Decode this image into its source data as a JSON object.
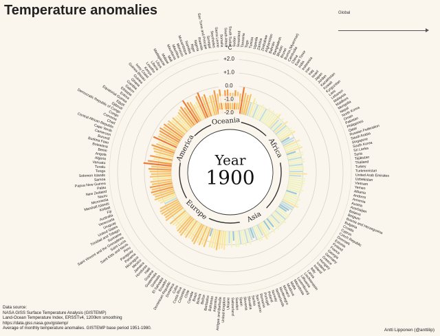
{
  "header": {
    "title": "Temperature anomalies"
  },
  "global_legend": {
    "label": "Global"
  },
  "center": {
    "year_label": "Year",
    "year_value": "1900"
  },
  "regions": [
    "America",
    "Oceania",
    "Africa",
    "Asia",
    "Europe"
  ],
  "footer": {
    "source_lines": [
      "Data source:",
      "NASA GISS Surface Temperature Analysis (GISTEMP)",
      "Land-Ocean Temperature Index, ERSSTv4, 1200km smoothing",
      "https://data.giss.nasa.gov/gistemp/",
      "Average of monthly temperature anomalies. GISTEMP base period 1951-1980."
    ],
    "credit": "Antti Lipponen (@anttilip)"
  },
  "chart_data": {
    "type": "bar",
    "layout": "radial",
    "title": "Temperature anomalies",
    "unit_label": "°C",
    "scale_ticks": [
      "+2.0",
      "+1.0",
      "0.0",
      "-1.0",
      "-2.0"
    ],
    "scale_values": [
      2,
      1,
      0,
      -1,
      -2
    ],
    "ylim": [
      -2,
      2
    ],
    "year": "1900",
    "colors": {
      "cold_deep": "#9cc6d6",
      "cold": "#c4dedc",
      "neutral": "#f1f2c4",
      "warm_light": "#f7e7a0",
      "warm": "#f6c36a",
      "hot": "#f29a45",
      "hotter": "#ec7a35"
    },
    "segments": [
      {
        "region": "Africa",
        "categories": [
          "Algeria",
          "Angola",
          "Benin",
          "Botswana",
          "Burkina Faso",
          "Burundi",
          "Cameroon",
          "Cape Verde",
          "Central African Republic",
          "Chad",
          "Comoros",
          "Congo",
          "Democratic Republic of Congo",
          "Djibouti",
          "Egypt",
          "Equatorial Guinea",
          "Eritrea",
          "Ethiopia",
          "Gabon",
          "Gambia",
          "Ghana",
          "Guinea",
          "Guinea-Bissau",
          "Ivory Coast",
          "Kenya",
          "Lesotho",
          "Liberia",
          "Libya",
          "Madagascar",
          "Malawi",
          "Mali",
          "Mauritania",
          "Mauritius",
          "Morocco",
          "Mozambique",
          "Namibia",
          "Niger",
          "Nigeria",
          "Rwanda",
          "Sao Tome and Principe",
          "Senegal",
          "Seychelles",
          "Sierra Leone",
          "Somalia",
          "South Africa",
          "South Sudan",
          "Sudan",
          "Swaziland",
          "Tanzania",
          "Togo",
          "Tunisia",
          "Uganda",
          "Zambia",
          "Zimbabwe"
        ],
        "values": [
          0.1,
          -0.2,
          -0.6,
          -0.3,
          -0.7,
          -0.5,
          -0.4,
          -0.2,
          -0.5,
          -0.6,
          -0.1,
          -0.4,
          -0.4,
          -0.3,
          -0.2,
          -0.4,
          -0.3,
          -0.5,
          -0.4,
          -0.6,
          -0.5,
          -0.6,
          -0.6,
          -0.5,
          -0.4,
          -0.3,
          -0.5,
          0.0,
          -0.3,
          -0.4,
          -0.7,
          -0.6,
          -0.2,
          0.0,
          -0.4,
          -0.3,
          -0.6,
          -0.5,
          -0.5,
          -0.2,
          -0.5,
          -0.2,
          -0.6,
          -0.3,
          -0.2,
          -0.5,
          -0.5,
          -0.3,
          -0.4,
          -0.5,
          0.0,
          -0.4,
          -0.5,
          -0.4
        ]
      },
      {
        "region": "Asia",
        "categories": [
          "Afghanistan",
          "Bahrain",
          "Bangladesh",
          "Bhutan",
          "Brunei",
          "Burma (Myanmar)",
          "Cambodia",
          "China",
          "East Timor",
          "India",
          "Indonesia",
          "Iran",
          "Iraq",
          "Israel",
          "Japan",
          "Jordan",
          "Kazakhstan",
          "Kuwait",
          "Kyrgyzstan",
          "Laos",
          "Lebanon",
          "Malaysia",
          "Maldives",
          "Mongolia",
          "Nepal",
          "North Korea",
          "Oman",
          "Pakistan",
          "Philippines",
          "Qatar",
          "Russian Federation",
          "Saudi Arabia",
          "Singapore",
          "South Korea",
          "Sri Lanka",
          "Syria",
          "Tajikistan",
          "Thailand",
          "Turkey",
          "Turkmenistan",
          "United Arab Emirates",
          "Uzbekistan",
          "Vietnam",
          "Yemen"
        ],
        "values": [
          -1.0,
          -0.6,
          -0.8,
          -1.0,
          -0.9,
          -0.8,
          -0.9,
          -1.0,
          -0.8,
          -0.9,
          -0.8,
          -0.9,
          -0.8,
          -0.7,
          -1.1,
          -0.8,
          -1.1,
          -0.7,
          -1.0,
          -0.9,
          -0.8,
          -0.8,
          -0.7,
          -1.3,
          -1.0,
          -1.1,
          -0.7,
          -0.9,
          -0.8,
          -0.7,
          -1.3,
          -0.8,
          -0.8,
          -1.0,
          -0.8,
          -0.8,
          -1.0,
          -0.9,
          -0.9,
          -1.0,
          -0.7,
          -1.1,
          -0.8,
          -0.8
        ]
      },
      {
        "region": "Europe",
        "categories": [
          "Albania",
          "Andorra",
          "Armenia",
          "Austria",
          "Azerbaijan",
          "Belarus",
          "Belgium",
          "Bosnia and Herzegovina",
          "Bulgaria",
          "Croatia",
          "Cyprus",
          "Czech Republic",
          "Denmark",
          "Estonia",
          "Finland",
          "France",
          "Georgia",
          "Germany",
          "Greece",
          "Hungary",
          "Iceland",
          "Ireland",
          "Italy",
          "Latvia",
          "Liechtenstein",
          "Lithuania",
          "Luxembourg",
          "Macedonia",
          "Malta",
          "Moldova",
          "Monaco",
          "Montenegro",
          "Netherlands",
          "Norway",
          "Poland",
          "Portugal",
          "Romania",
          "San Marino",
          "Serbia",
          "Slovakia",
          "Slovenia",
          "Spain",
          "Sweden",
          "Switzerland",
          "Ukraine",
          "United Kingdom"
        ],
        "values": [
          -0.8,
          -0.9,
          -0.9,
          -0.8,
          -0.9,
          -1.2,
          -0.9,
          -0.8,
          -0.9,
          -0.8,
          -0.7,
          -1.0,
          -1.0,
          -1.2,
          -1.3,
          -0.9,
          -0.9,
          -1.0,
          -0.8,
          -0.9,
          -1.1,
          -0.9,
          -0.8,
          -1.2,
          -0.8,
          -1.2,
          -0.9,
          -0.8,
          -0.7,
          -1.1,
          -0.8,
          -0.8,
          -1.0,
          -1.2,
          -1.1,
          -0.8,
          -1.0,
          -0.8,
          -0.9,
          -1.0,
          -0.8,
          -0.8,
          -1.3,
          -0.8,
          -1.1,
          -0.9
        ]
      },
      {
        "region": "America",
        "categories": [
          "Antigua and Barbuda",
          "Argentina",
          "Bahamas",
          "Barbados",
          "Belize",
          "Bolivia",
          "Brazil",
          "Canada",
          "Chile",
          "Colombia",
          "Costa Rica",
          "Cuba",
          "Dominica",
          "Dominican Republic",
          "Ecuador",
          "El Salvador",
          "Grenada",
          "Guatemala",
          "Guyana",
          "Haiti",
          "Honduras",
          "Jamaica",
          "Mexico",
          "Nicaragua",
          "Panama",
          "Paraguay",
          "Peru",
          "Saint Kitts and Nevis",
          "Saint Lucia",
          "Saint Vincent and the Grenadines",
          "Suriname",
          "Trinidad and Tobago",
          "United States",
          "Uruguay",
          "Venezuela"
        ],
        "values": [
          -0.6,
          -0.7,
          -0.6,
          -0.5,
          -0.6,
          -0.6,
          -0.6,
          -1.4,
          -0.5,
          -0.6,
          -0.5,
          -0.6,
          -0.4,
          -0.5,
          -0.6,
          -0.6,
          -0.5,
          -0.6,
          -0.4,
          -0.5,
          -0.5,
          -0.6,
          -0.7,
          -0.6,
          -0.5,
          -0.8,
          -0.4,
          -0.5,
          -0.5,
          -0.4,
          -0.4,
          -0.5,
          -1.0,
          -0.7,
          -0.6
        ]
      },
      {
        "region": "Oceania",
        "categories": [
          "Australia",
          "Fiji",
          "Kiribati",
          "Marshall Islands",
          "Micronesia",
          "Nauru",
          "New Zealand",
          "Palau",
          "Papua New Guinea",
          "Samoa",
          "Solomon Islands",
          "Tonga",
          "Tuvalu",
          "Vanuatu"
        ],
        "values": [
          -0.4,
          -0.5,
          -0.4,
          -0.3,
          -0.4,
          -0.3,
          -0.5,
          -0.4,
          -0.6,
          -0.4,
          -0.5,
          -0.4,
          -0.3,
          -0.5
        ]
      }
    ]
  }
}
